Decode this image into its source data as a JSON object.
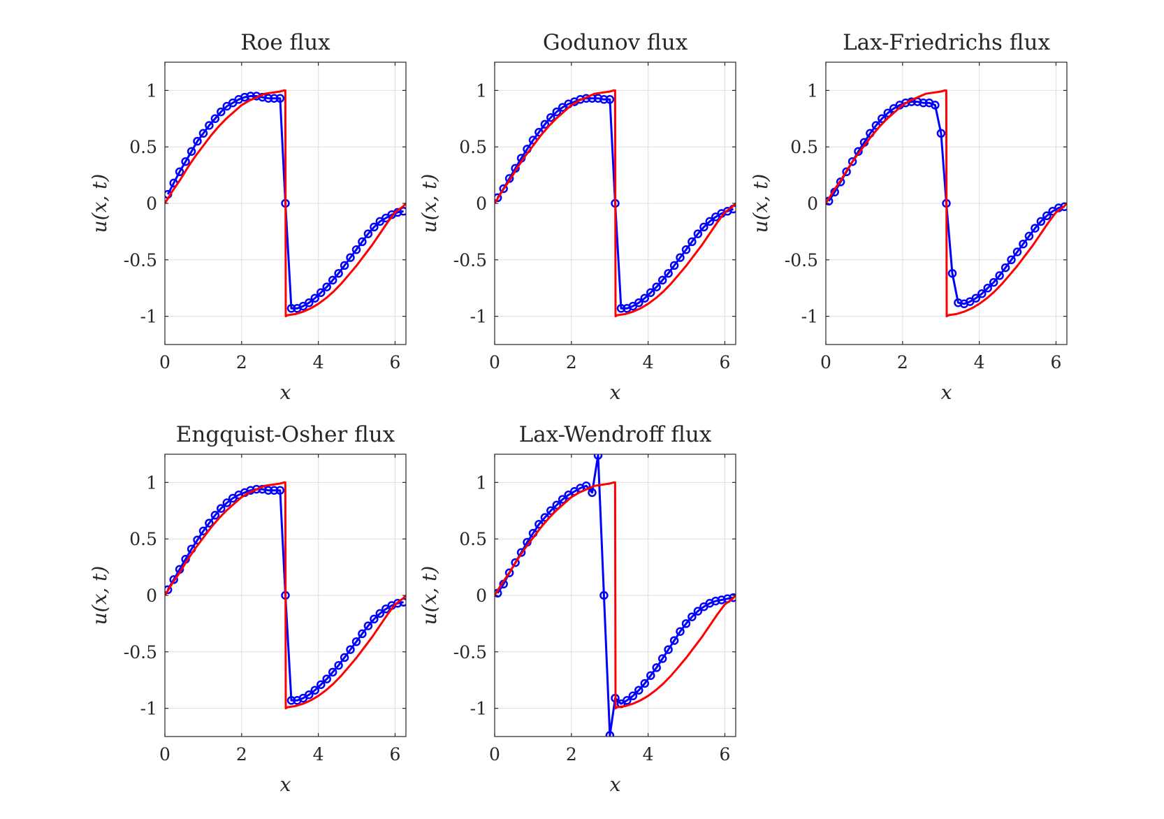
{
  "colors": {
    "numerical": "#0000ff",
    "exact": "#ff0000",
    "grid": "#dedede",
    "axis": "#262626"
  },
  "chart_data": [
    {
      "type": "line",
      "title": "Roe flux",
      "xlabel": "x",
      "ylabel": "u(x, t)",
      "xlim": [
        0,
        6.2832
      ],
      "ylim": [
        -1.25,
        1.25
      ],
      "xticks": [
        0,
        2,
        4,
        6
      ],
      "yticks": [
        -1,
        -0.5,
        0,
        0.5,
        1
      ],
      "grid": true,
      "series": [
        {
          "kind": "numerical",
          "marker": "circle",
          "x": [
            0.077,
            0.231,
            0.385,
            0.539,
            0.693,
            0.847,
            1.001,
            1.155,
            1.309,
            1.463,
            1.617,
            1.771,
            1.925,
            2.079,
            2.233,
            2.387,
            2.541,
            2.695,
            2.849,
            3.003,
            3.142,
            3.296,
            3.45,
            3.604,
            3.758,
            3.912,
            4.066,
            4.22,
            4.374,
            4.528,
            4.682,
            4.836,
            4.99,
            5.144,
            5.298,
            5.452,
            5.606,
            5.76,
            5.914,
            6.068,
            6.222
          ],
          "y": [
            0.08,
            0.18,
            0.28,
            0.37,
            0.46,
            0.55,
            0.62,
            0.69,
            0.75,
            0.81,
            0.86,
            0.89,
            0.92,
            0.94,
            0.95,
            0.95,
            0.94,
            0.93,
            0.93,
            0.93,
            0.0,
            -0.93,
            -0.93,
            -0.91,
            -0.88,
            -0.84,
            -0.79,
            -0.74,
            -0.68,
            -0.62,
            -0.55,
            -0.48,
            -0.41,
            -0.34,
            -0.27,
            -0.21,
            -0.16,
            -0.13,
            -0.1,
            -0.08,
            -0.07
          ]
        },
        {
          "kind": "exact",
          "marker": "none",
          "x": [
            0,
            0.2,
            0.4,
            0.6,
            0.8,
            1.0,
            1.2,
            1.4,
            1.6,
            1.8,
            2.0,
            2.2,
            2.4,
            2.6,
            2.8,
            3.0,
            3.1,
            3.14,
            3.15,
            3.2,
            3.4,
            3.6,
            3.8,
            4.0,
            4.2,
            4.4,
            4.6,
            4.8,
            5.0,
            5.2,
            5.4,
            5.6,
            5.8,
            6.0,
            6.2,
            6.283
          ],
          "y": [
            0.0,
            0.11,
            0.21,
            0.32,
            0.42,
            0.51,
            0.6,
            0.68,
            0.75,
            0.81,
            0.87,
            0.91,
            0.94,
            0.97,
            0.98,
            0.99,
            1.0,
            1.0,
            -1.0,
            -0.99,
            -0.98,
            -0.96,
            -0.93,
            -0.89,
            -0.84,
            -0.78,
            -0.71,
            -0.63,
            -0.55,
            -0.46,
            -0.37,
            -0.27,
            -0.17,
            -0.08,
            -0.03,
            0.0
          ]
        }
      ]
    },
    {
      "type": "line",
      "title": "Godunov flux",
      "xlabel": "x",
      "ylabel": "u(x, t)",
      "xlim": [
        0,
        6.2832
      ],
      "ylim": [
        -1.25,
        1.25
      ],
      "xticks": [
        0,
        2,
        4,
        6
      ],
      "yticks": [
        -1,
        -0.5,
        0,
        0.5,
        1
      ],
      "grid": true,
      "series": [
        {
          "kind": "numerical",
          "marker": "circle",
          "x": [
            0.077,
            0.231,
            0.385,
            0.539,
            0.693,
            0.847,
            1.001,
            1.155,
            1.309,
            1.463,
            1.617,
            1.771,
            1.925,
            2.079,
            2.233,
            2.387,
            2.541,
            2.695,
            2.849,
            3.003,
            3.142,
            3.296,
            3.45,
            3.604,
            3.758,
            3.912,
            4.066,
            4.22,
            4.374,
            4.528,
            4.682,
            4.836,
            4.99,
            5.144,
            5.298,
            5.452,
            5.606,
            5.76,
            5.914,
            6.068,
            6.222
          ],
          "y": [
            0.05,
            0.13,
            0.22,
            0.31,
            0.4,
            0.48,
            0.56,
            0.63,
            0.7,
            0.76,
            0.81,
            0.85,
            0.88,
            0.9,
            0.92,
            0.93,
            0.93,
            0.93,
            0.92,
            0.92,
            0.0,
            -0.93,
            -0.93,
            -0.91,
            -0.88,
            -0.84,
            -0.79,
            -0.74,
            -0.68,
            -0.62,
            -0.55,
            -0.48,
            -0.41,
            -0.34,
            -0.27,
            -0.21,
            -0.16,
            -0.12,
            -0.09,
            -0.07,
            -0.05
          ]
        },
        {
          "kind": "exact",
          "marker": "none",
          "x": [
            0,
            0.2,
            0.4,
            0.6,
            0.8,
            1.0,
            1.2,
            1.4,
            1.6,
            1.8,
            2.0,
            2.2,
            2.4,
            2.6,
            2.8,
            3.0,
            3.1,
            3.14,
            3.15,
            3.2,
            3.4,
            3.6,
            3.8,
            4.0,
            4.2,
            4.4,
            4.6,
            4.8,
            5.0,
            5.2,
            5.4,
            5.6,
            5.8,
            6.0,
            6.2,
            6.283
          ],
          "y": [
            0.0,
            0.11,
            0.21,
            0.32,
            0.42,
            0.51,
            0.6,
            0.68,
            0.75,
            0.81,
            0.87,
            0.91,
            0.94,
            0.97,
            0.98,
            0.99,
            1.0,
            1.0,
            -1.0,
            -0.99,
            -0.98,
            -0.96,
            -0.93,
            -0.89,
            -0.84,
            -0.78,
            -0.71,
            -0.63,
            -0.55,
            -0.46,
            -0.37,
            -0.27,
            -0.17,
            -0.08,
            -0.03,
            0.0
          ]
        }
      ]
    },
    {
      "type": "line",
      "title": "Lax-Friedrichs flux",
      "xlabel": "x",
      "ylabel": "u(x, t)",
      "xlim": [
        0,
        6.2832
      ],
      "ylim": [
        -1.25,
        1.25
      ],
      "xticks": [
        0,
        2,
        4,
        6
      ],
      "yticks": [
        -1,
        -0.5,
        0,
        0.5,
        1
      ],
      "grid": true,
      "series": [
        {
          "kind": "numerical",
          "marker": "circle",
          "x": [
            0.077,
            0.231,
            0.385,
            0.539,
            0.693,
            0.847,
            1.001,
            1.155,
            1.309,
            1.463,
            1.617,
            1.771,
            1.925,
            2.079,
            2.233,
            2.387,
            2.541,
            2.695,
            2.849,
            3.003,
            3.142,
            3.296,
            3.45,
            3.604,
            3.758,
            3.912,
            4.066,
            4.22,
            4.374,
            4.528,
            4.682,
            4.836,
            4.99,
            5.144,
            5.298,
            5.452,
            5.606,
            5.76,
            5.914,
            6.068,
            6.222
          ],
          "y": [
            0.02,
            0.1,
            0.19,
            0.28,
            0.37,
            0.46,
            0.54,
            0.62,
            0.69,
            0.75,
            0.8,
            0.84,
            0.87,
            0.89,
            0.9,
            0.9,
            0.89,
            0.89,
            0.87,
            0.62,
            0.0,
            -0.62,
            -0.88,
            -0.89,
            -0.87,
            -0.84,
            -0.8,
            -0.75,
            -0.7,
            -0.64,
            -0.57,
            -0.5,
            -0.43,
            -0.36,
            -0.29,
            -0.22,
            -0.16,
            -0.11,
            -0.07,
            -0.04,
            -0.03
          ]
        },
        {
          "kind": "exact",
          "marker": "none",
          "x": [
            0,
            0.2,
            0.4,
            0.6,
            0.8,
            1.0,
            1.2,
            1.4,
            1.6,
            1.8,
            2.0,
            2.2,
            2.4,
            2.6,
            2.8,
            3.0,
            3.1,
            3.14,
            3.15,
            3.2,
            3.4,
            3.6,
            3.8,
            4.0,
            4.2,
            4.4,
            4.6,
            4.8,
            5.0,
            5.2,
            5.4,
            5.6,
            5.8,
            6.0,
            6.2,
            6.283
          ],
          "y": [
            0.0,
            0.11,
            0.21,
            0.32,
            0.42,
            0.51,
            0.6,
            0.68,
            0.75,
            0.81,
            0.87,
            0.91,
            0.94,
            0.97,
            0.98,
            0.99,
            1.0,
            1.0,
            -1.0,
            -0.99,
            -0.98,
            -0.96,
            -0.93,
            -0.89,
            -0.84,
            -0.78,
            -0.71,
            -0.63,
            -0.55,
            -0.46,
            -0.37,
            -0.27,
            -0.17,
            -0.08,
            -0.03,
            0.0
          ]
        }
      ]
    },
    {
      "type": "line",
      "title": "Engquist-Osher flux",
      "xlabel": "x",
      "ylabel": "u(x, t)",
      "xlim": [
        0,
        6.2832
      ],
      "ylim": [
        -1.25,
        1.25
      ],
      "xticks": [
        0,
        2,
        4,
        6
      ],
      "yticks": [
        -1,
        -0.5,
        0,
        0.5,
        1
      ],
      "grid": true,
      "series": [
        {
          "kind": "numerical",
          "marker": "circle",
          "x": [
            0.077,
            0.231,
            0.385,
            0.539,
            0.693,
            0.847,
            1.001,
            1.155,
            1.309,
            1.463,
            1.617,
            1.771,
            1.925,
            2.079,
            2.233,
            2.387,
            2.541,
            2.695,
            2.849,
            3.003,
            3.142,
            3.296,
            3.45,
            3.604,
            3.758,
            3.912,
            4.066,
            4.22,
            4.374,
            4.528,
            4.682,
            4.836,
            4.99,
            5.144,
            5.298,
            5.452,
            5.606,
            5.76,
            5.914,
            6.068,
            6.222
          ],
          "y": [
            0.05,
            0.14,
            0.23,
            0.32,
            0.41,
            0.49,
            0.57,
            0.64,
            0.71,
            0.77,
            0.82,
            0.86,
            0.89,
            0.91,
            0.93,
            0.94,
            0.94,
            0.93,
            0.93,
            0.93,
            0.0,
            -0.93,
            -0.93,
            -0.91,
            -0.88,
            -0.84,
            -0.79,
            -0.74,
            -0.68,
            -0.62,
            -0.55,
            -0.48,
            -0.41,
            -0.34,
            -0.27,
            -0.21,
            -0.16,
            -0.12,
            -0.09,
            -0.07,
            -0.06
          ]
        },
        {
          "kind": "exact",
          "marker": "none",
          "x": [
            0,
            0.2,
            0.4,
            0.6,
            0.8,
            1.0,
            1.2,
            1.4,
            1.6,
            1.8,
            2.0,
            2.2,
            2.4,
            2.6,
            2.8,
            3.0,
            3.1,
            3.14,
            3.15,
            3.2,
            3.4,
            3.6,
            3.8,
            4.0,
            4.2,
            4.4,
            4.6,
            4.8,
            5.0,
            5.2,
            5.4,
            5.6,
            5.8,
            6.0,
            6.2,
            6.283
          ],
          "y": [
            0.0,
            0.11,
            0.21,
            0.32,
            0.42,
            0.51,
            0.6,
            0.68,
            0.75,
            0.81,
            0.87,
            0.91,
            0.94,
            0.97,
            0.98,
            0.99,
            1.0,
            1.0,
            -1.0,
            -0.99,
            -0.98,
            -0.96,
            -0.93,
            -0.89,
            -0.84,
            -0.78,
            -0.71,
            -0.63,
            -0.55,
            -0.46,
            -0.37,
            -0.27,
            -0.17,
            -0.08,
            -0.03,
            0.0
          ]
        }
      ]
    },
    {
      "type": "line",
      "title": "Lax-Wendroff flux",
      "xlabel": "x",
      "ylabel": "u(x, t)",
      "xlim": [
        0,
        6.2832
      ],
      "ylim": [
        -1.25,
        1.25
      ],
      "xticks": [
        0,
        2,
        4,
        6
      ],
      "yticks": [
        -1,
        -0.5,
        0,
        0.5,
        1
      ],
      "grid": true,
      "series": [
        {
          "kind": "numerical",
          "marker": "circle",
          "x": [
            0.077,
            0.231,
            0.385,
            0.539,
            0.693,
            0.847,
            1.001,
            1.155,
            1.309,
            1.463,
            1.617,
            1.771,
            1.925,
            2.079,
            2.233,
            2.387,
            2.541,
            2.695,
            2.849,
            3.003,
            3.142,
            3.296,
            3.45,
            3.604,
            3.758,
            3.912,
            4.066,
            4.22,
            4.374,
            4.528,
            4.682,
            4.836,
            4.99,
            5.144,
            5.298,
            5.452,
            5.606,
            5.76,
            5.914,
            6.068,
            6.222
          ],
          "y": [
            0.02,
            0.1,
            0.2,
            0.29,
            0.38,
            0.47,
            0.55,
            0.63,
            0.69,
            0.75,
            0.8,
            0.85,
            0.89,
            0.92,
            0.95,
            0.97,
            0.91,
            1.24,
            0.0,
            -1.24,
            -0.91,
            -0.96,
            -0.93,
            -0.89,
            -0.84,
            -0.78,
            -0.71,
            -0.64,
            -0.56,
            -0.48,
            -0.4,
            -0.32,
            -0.25,
            -0.19,
            -0.14,
            -0.1,
            -0.07,
            -0.05,
            -0.04,
            -0.03,
            -0.02
          ]
        },
        {
          "kind": "exact",
          "marker": "none",
          "x": [
            0,
            0.2,
            0.4,
            0.6,
            0.8,
            1.0,
            1.2,
            1.4,
            1.6,
            1.8,
            2.0,
            2.2,
            2.4,
            2.6,
            2.8,
            3.0,
            3.1,
            3.14,
            3.15,
            3.2,
            3.4,
            3.6,
            3.8,
            4.0,
            4.2,
            4.4,
            4.6,
            4.8,
            5.0,
            5.2,
            5.4,
            5.6,
            5.8,
            6.0,
            6.2,
            6.283
          ],
          "y": [
            0.0,
            0.11,
            0.21,
            0.32,
            0.42,
            0.51,
            0.6,
            0.68,
            0.75,
            0.81,
            0.87,
            0.91,
            0.94,
            0.97,
            0.98,
            0.99,
            1.0,
            1.0,
            -1.0,
            -0.99,
            -0.98,
            -0.96,
            -0.93,
            -0.89,
            -0.84,
            -0.78,
            -0.71,
            -0.63,
            -0.55,
            -0.46,
            -0.37,
            -0.27,
            -0.17,
            -0.08,
            -0.03,
            0.0
          ]
        }
      ]
    }
  ]
}
